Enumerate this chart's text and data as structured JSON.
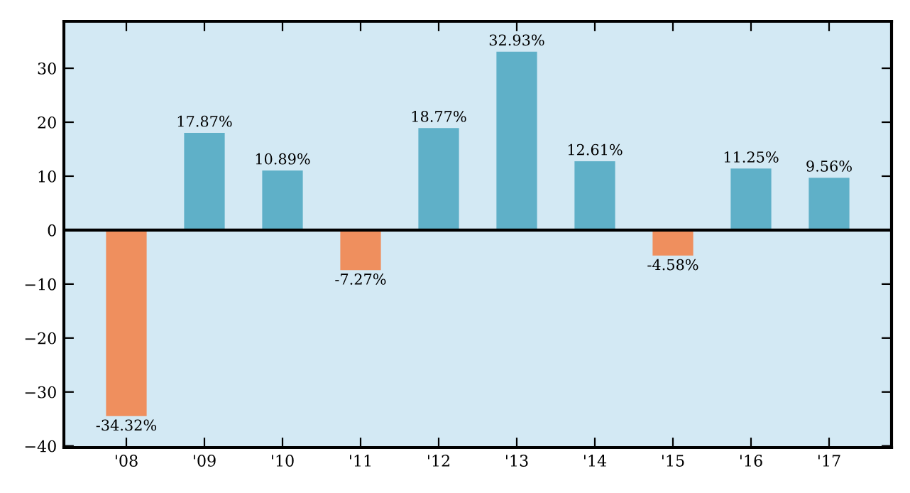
{
  "chart_data": {
    "type": "bar",
    "categories": [
      "'08",
      "'09",
      "'10",
      "'11",
      "'12",
      "'13",
      "'14",
      "'15",
      "'16",
      "'17"
    ],
    "values": [
      -34.32,
      17.87,
      10.89,
      -7.27,
      18.77,
      32.93,
      12.61,
      -4.58,
      11.25,
      9.56
    ],
    "colors": [
      "#ef8f5e",
      "#5fb0c8",
      "#5fb0c8",
      "#ef8f5e",
      "#5fb0c8",
      "#5fb0c8",
      "#5fb0c8",
      "#ef8f5e",
      "#5fb0c8",
      "#5fb0c8"
    ],
    "value_labels": [
      "-34.32%",
      "17.87%",
      "10.89%",
      "-7.27%",
      "18.77%",
      "32.93%",
      "12.61%",
      "-4.58%",
      "11.25%",
      "9.56%"
    ],
    "ylim": [
      -40.3,
      38.7
    ],
    "yticks": [
      -40,
      -30,
      -20,
      -10,
      0,
      10,
      20,
      30
    ],
    "ref_lines": [
      {
        "axis": "y",
        "value": 0,
        "color": "#000000"
      }
    ],
    "grid": false
  }
}
